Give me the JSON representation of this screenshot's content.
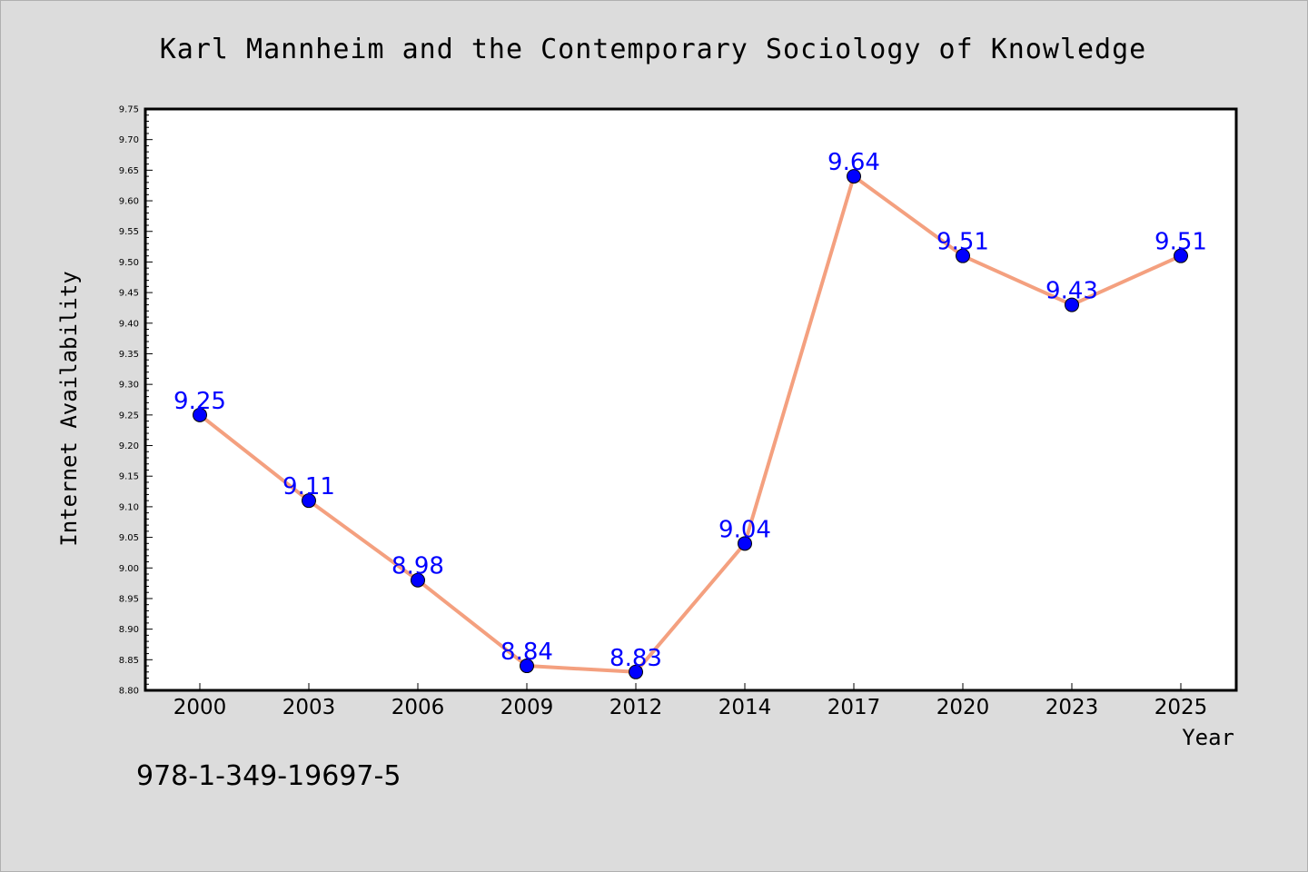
{
  "chart_data": {
    "type": "line",
    "title": "Karl Mannheim and the Contemporary Sociology of Knowledge",
    "xlabel": "Year",
    "ylabel": "Internet Availability",
    "categories": [
      "2000",
      "2003",
      "2006",
      "2009",
      "2012",
      "2014",
      "2017",
      "2020",
      "2023",
      "2025"
    ],
    "values": [
      9.25,
      9.11,
      8.98,
      8.84,
      8.83,
      9.04,
      9.64,
      9.51,
      9.43,
      9.51
    ],
    "data_labels": [
      "9.25",
      "9.11",
      "8.98",
      "8.84",
      "8.83",
      "9.04",
      "9.64",
      "9.51",
      "9.43",
      "9.51"
    ],
    "ylim": [
      8.8,
      9.75
    ],
    "y_ticks": [
      "8.80",
      "8.85",
      "8.90",
      "8.95",
      "9.00",
      "9.05",
      "9.10",
      "9.15",
      "9.20",
      "9.25",
      "9.30",
      "9.35",
      "9.40",
      "9.45",
      "9.50",
      "9.55",
      "9.60",
      "9.65",
      "9.70",
      "9.75"
    ],
    "grid": false,
    "colors": {
      "line": "#f4a07f",
      "marker": "#0000ff",
      "label": "#0000ff",
      "background": "#dcdcdc",
      "plot_background": "#ffffff"
    }
  },
  "footer": {
    "isbn": "978-1-349-19697-5"
  }
}
